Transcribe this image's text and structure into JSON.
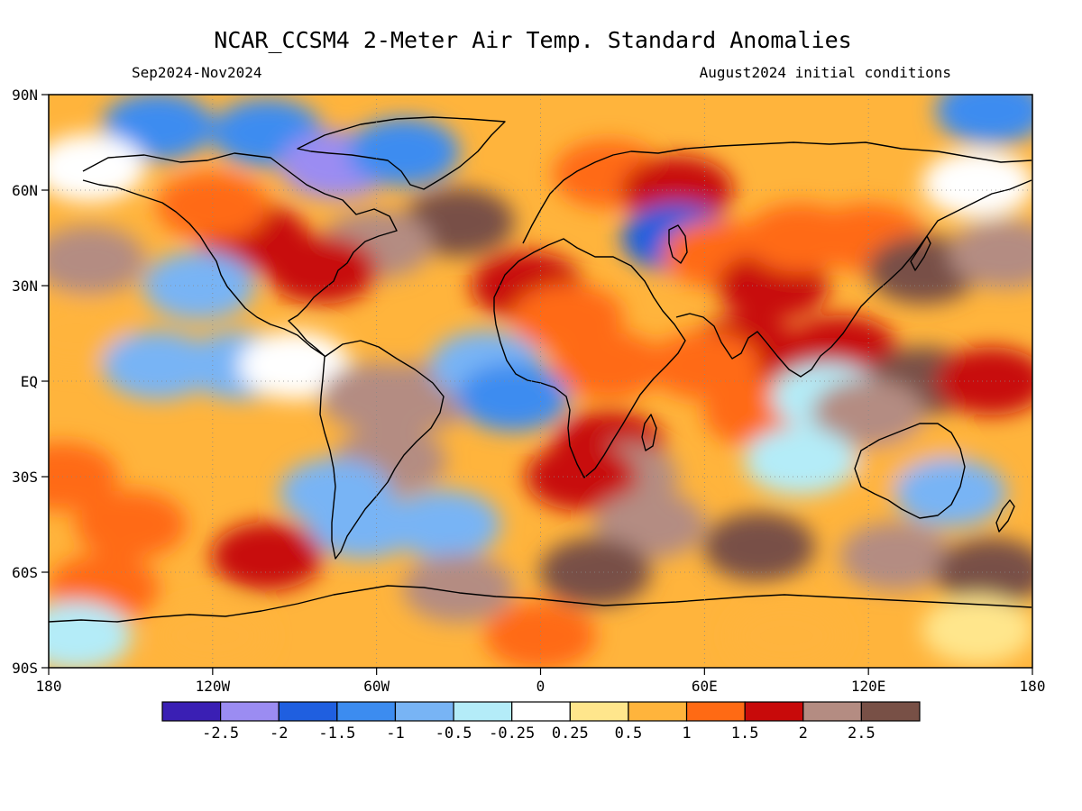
{
  "title": "NCAR_CCSM4 2-Meter Air Temp. Standard Anomalies",
  "subtitle_left": "Sep2024-Nov2024",
  "subtitle_right": "August2024 initial conditions",
  "map": {
    "projection": "equirectangular",
    "lon_range": [
      -180,
      180
    ],
    "lat_range": [
      -90,
      90
    ],
    "lat_labels": [
      "90N",
      "60N",
      "30N",
      "EQ",
      "30S",
      "60S",
      "90S"
    ],
    "lon_labels": [
      "180",
      "120W",
      "60W",
      "0",
      "60E",
      "120E",
      "180"
    ],
    "grid": "dotted"
  },
  "colorbar": {
    "colors": [
      "#3a1fb4",
      "#9b8cf2",
      "#1f5fe0",
      "#3c8cf0",
      "#78b4f5",
      "#b4ecf8",
      "#ffffff",
      "#ffe68c",
      "#ffb43c",
      "#ff6a14",
      "#c80a0a",
      "#b48c82",
      "#785046"
    ],
    "labels": [
      "-2.5",
      "-2",
      "-1.5",
      "-1",
      "-0.5",
      "-0.25",
      "0.25",
      "0.5",
      "1",
      "1.5",
      "2",
      "2.5"
    ]
  },
  "chart_data": {
    "type": "heatmap",
    "title": "NCAR_CCSM4 2-Meter Air Temp. Standard Anomalies",
    "valid_period": "Sep2024-Nov2024",
    "initial_conditions": "August2024 initial conditions",
    "x_range": [
      -180,
      180
    ],
    "y_range": [
      -90,
      90
    ],
    "x_ticks": [
      "180",
      "120W",
      "60W",
      "0",
      "60E",
      "120E",
      "180"
    ],
    "y_ticks": [
      "90N",
      "60N",
      "30N",
      "EQ",
      "30S",
      "60S",
      "90S"
    ],
    "color_levels": [
      -2.5,
      -2,
      -1.5,
      -1,
      -0.5,
      -0.25,
      0.25,
      0.5,
      1,
      1.5,
      2,
      2.5
    ],
    "regions": [
      {
        "lon": 165,
        "lat": 85,
        "value": -1.5
      },
      {
        "lon": -140,
        "lat": 80,
        "value": -1.2
      },
      {
        "lon": -100,
        "lat": 78,
        "value": -1.5
      },
      {
        "lon": -75,
        "lat": 68,
        "value": -2.2
      },
      {
        "lon": -50,
        "lat": 72,
        "value": -1.4
      },
      {
        "lon": -165,
        "lat": 67,
        "value": 0.0
      },
      {
        "lon": -30,
        "lat": 50,
        "value": 2.6
      },
      {
        "lon": -60,
        "lat": 43,
        "value": 2.2
      },
      {
        "lon": -80,
        "lat": 35,
        "value": 1.6
      },
      {
        "lon": -105,
        "lat": 45,
        "value": 1.7
      },
      {
        "lon": -120,
        "lat": 55,
        "value": 1.2
      },
      {
        "lon": -125,
        "lat": 30,
        "value": -0.7
      },
      {
        "lon": -165,
        "lat": 38,
        "value": 2.0
      },
      {
        "lon": -170,
        "lat": 15,
        "value": 0.6
      },
      {
        "lon": -110,
        "lat": 5,
        "value": -0.6
      },
      {
        "lon": -140,
        "lat": 5,
        "value": -0.7
      },
      {
        "lon": -90,
        "lat": 5,
        "value": 0.0
      },
      {
        "lon": -60,
        "lat": -5,
        "value": 2.4
      },
      {
        "lon": -55,
        "lat": -25,
        "value": 2.3
      },
      {
        "lon": -45,
        "lat": -5,
        "value": 2.0
      },
      {
        "lon": -75,
        "lat": -35,
        "value": -0.6
      },
      {
        "lon": -65,
        "lat": -45,
        "value": -0.6
      },
      {
        "lon": -35,
        "lat": -45,
        "value": -0.8
      },
      {
        "lon": -20,
        "lat": 5,
        "value": -0.9
      },
      {
        "lon": -10,
        "lat": -5,
        "value": -1.3
      },
      {
        "lon": -5,
        "lat": 30,
        "value": 1.6
      },
      {
        "lon": 10,
        "lat": 20,
        "value": 1.2
      },
      {
        "lon": 25,
        "lat": 5,
        "value": 1.4
      },
      {
        "lon": 25,
        "lat": -20,
        "value": 1.6
      },
      {
        "lon": 30,
        "lat": -30,
        "value": 2.4
      },
      {
        "lon": 15,
        "lat": -30,
        "value": 1.9
      },
      {
        "lon": 25,
        "lat": 65,
        "value": 1.4
      },
      {
        "lon": 50,
        "lat": 60,
        "value": 1.6
      },
      {
        "lon": 50,
        "lat": 45,
        "value": -1.8
      },
      {
        "lon": 65,
        "lat": 40,
        "value": 1.0
      },
      {
        "lon": 85,
        "lat": 30,
        "value": 1.5
      },
      {
        "lon": 95,
        "lat": 45,
        "value": 1.2
      },
      {
        "lon": 120,
        "lat": 45,
        "value": 1.3
      },
      {
        "lon": 140,
        "lat": 35,
        "value": 2.5
      },
      {
        "lon": 160,
        "lat": 62,
        "value": 0.2
      },
      {
        "lon": 170,
        "lat": 40,
        "value": 2.0
      },
      {
        "lon": 75,
        "lat": 10,
        "value": 1.6
      },
      {
        "lon": 60,
        "lat": 5,
        "value": 1.4
      },
      {
        "lon": 80,
        "lat": -10,
        "value": 1.2
      },
      {
        "lon": 110,
        "lat": 10,
        "value": 1.6
      },
      {
        "lon": 140,
        "lat": 0,
        "value": 2.5
      },
      {
        "lon": 165,
        "lat": 0,
        "value": 1.5
      },
      {
        "lon": 105,
        "lat": -5,
        "value": -0.4
      },
      {
        "lon": 135,
        "lat": -25,
        "value": 0.7
      },
      {
        "lon": 150,
        "lat": -35,
        "value": -0.8
      },
      {
        "lon": 120,
        "lat": -10,
        "value": 2.2
      },
      {
        "lon": 95,
        "lat": -25,
        "value": -0.4
      },
      {
        "lon": 40,
        "lat": -45,
        "value": 2.2
      },
      {
        "lon": 80,
        "lat": -52,
        "value": 2.5
      },
      {
        "lon": 130,
        "lat": -55,
        "value": 2.2
      },
      {
        "lon": 165,
        "lat": -60,
        "value": 2.6
      },
      {
        "lon": 20,
        "lat": -60,
        "value": 2.5
      },
      {
        "lon": -30,
        "lat": -65,
        "value": 2.3
      },
      {
        "lon": -100,
        "lat": -55,
        "value": 1.6
      },
      {
        "lon": -150,
        "lat": -45,
        "value": 1.4
      },
      {
        "lon": -175,
        "lat": -30,
        "value": 1.1
      },
      {
        "lon": -160,
        "lat": -65,
        "value": 1.2
      },
      {
        "lon": -170,
        "lat": -80,
        "value": -0.5
      },
      {
        "lon": -120,
        "lat": -80,
        "value": 0.8
      },
      {
        "lon": 0,
        "lat": -80,
        "value": 1.0
      },
      {
        "lon": 90,
        "lat": -80,
        "value": 0.8
      },
      {
        "lon": 160,
        "lat": -78,
        "value": 0.3
      }
    ]
  }
}
